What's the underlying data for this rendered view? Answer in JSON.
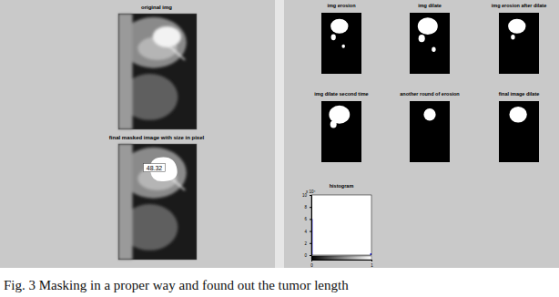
{
  "caption": "Fig. 3 Masking in a proper way and found out the tumor length",
  "left_panels": [
    {
      "title": "original img"
    },
    {
      "title": "final masked image with size in pixel",
      "annotation": "48.32"
    }
  ],
  "right_panels": [
    {
      "title": "img erosion"
    },
    {
      "title": "img dilate"
    },
    {
      "title": "img erosion after dilate"
    },
    {
      "title": "img dilate second time"
    },
    {
      "title": "another round of erosion"
    },
    {
      "title": "final image dilate"
    }
  ],
  "chart_data": {
    "type": "histogram",
    "title": "histogram",
    "bins": [
      0,
      0.02,
      0.98,
      1
    ],
    "counts": [
      6,
      0,
      0.3
    ],
    "color": "#0000ff",
    "xlim": [
      0,
      1
    ],
    "xticks": [
      0,
      1
    ],
    "ylim": [
      0,
      10
    ],
    "yticks": [
      0,
      2,
      4,
      6,
      8,
      10
    ],
    "y_multiplier": "x 10⁴"
  }
}
